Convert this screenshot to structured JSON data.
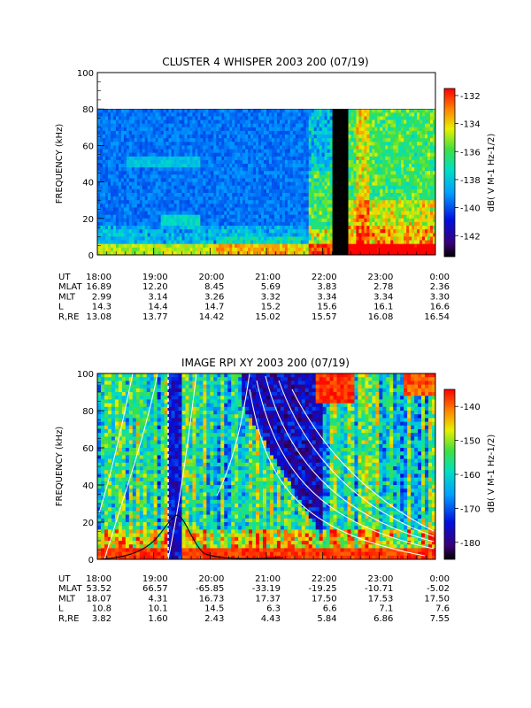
{
  "chart_data": [
    {
      "type": "heatmap",
      "title": "CLUSTER 4 WHISPER 2003 200 (07/19)",
      "ylabel": "FREQUENCY (kHz)",
      "ylim": [
        0,
        100
      ],
      "yticks": [
        0,
        20,
        40,
        60,
        80,
        100
      ],
      "colorbar_label": "dB( V M-1 Hz-1/2)",
      "colorbar_range": [
        -143.5,
        -131.5
      ],
      "colorbar_ticks": [
        -142,
        -140,
        -138,
        -136,
        -134,
        -132
      ],
      "data_upper_frequency_khz": 80,
      "data_gap_start": "22:10",
      "data_gap_end": "22:20",
      "x_ticks": [
        "18:00",
        "19:00",
        "20:00",
        "21:00",
        "22:00",
        "23:00",
        "0:00"
      ],
      "ephemeris": [
        {
          "label": "UT",
          "values": [
            "18:00",
            "19:00",
            "20:00",
            "21:00",
            "22:00",
            "23:00",
            "0:00"
          ]
        },
        {
          "label": "MLAT",
          "values": [
            "16.89",
            "12.20",
            "8.45",
            "5.69",
            "3.83",
            "2.78",
            "2.36"
          ]
        },
        {
          "label": "MLT",
          "values": [
            "2.99",
            "3.14",
            "3.26",
            "3.32",
            "3.34",
            "3.34",
            "3.30"
          ]
        },
        {
          "label": "L",
          "values": [
            "14.3",
            "14.4",
            "14.7",
            "15.2",
            "15.6",
            "16.1",
            "16.6"
          ]
        },
        {
          "label": "R,RE",
          "values": [
            "13.08",
            "13.77",
            "14.42",
            "15.02",
            "15.57",
            "16.08",
            "16.54"
          ]
        }
      ]
    },
    {
      "type": "heatmap",
      "title": "IMAGE RPI XY 2003 200 (07/19)",
      "ylabel": "FREQUENCY (kHz)",
      "ylim": [
        0,
        100
      ],
      "yticks": [
        0,
        20,
        40,
        60,
        80,
        100
      ],
      "colorbar_label": "dB( V M-1 Hz-1/2)",
      "colorbar_range": [
        -185,
        -135
      ],
      "colorbar_ticks": [
        -180,
        -170,
        -160,
        -150,
        -140
      ],
      "x_ticks": [
        "18:00",
        "19:00",
        "20:00",
        "21:00",
        "22:00",
        "23:00",
        "0:00"
      ],
      "ephemeris": [
        {
          "label": "UT",
          "values": [
            "18:00",
            "19:00",
            "20:00",
            "21:00",
            "22:00",
            "23:00",
            "0:00"
          ]
        },
        {
          "label": "MLAT",
          "values": [
            "53.52",
            "66.57",
            "-65.85",
            "-33.19",
            "-19.25",
            "-10.71",
            "-5.02"
          ]
        },
        {
          "label": "MLT",
          "values": [
            "18.07",
            "4.31",
            "16.73",
            "17.37",
            "17.50",
            "17.53",
            "17.50"
          ]
        },
        {
          "label": "L",
          "values": [
            "10.8",
            "10.1",
            "14.5",
            "6.3",
            "6.6",
            "7.1",
            "7.6"
          ]
        },
        {
          "label": "R,RE",
          "values": [
            "3.82",
            "1.60",
            "2.43",
            "4.43",
            "5.84",
            "6.86",
            "7.55"
          ]
        }
      ]
    }
  ]
}
